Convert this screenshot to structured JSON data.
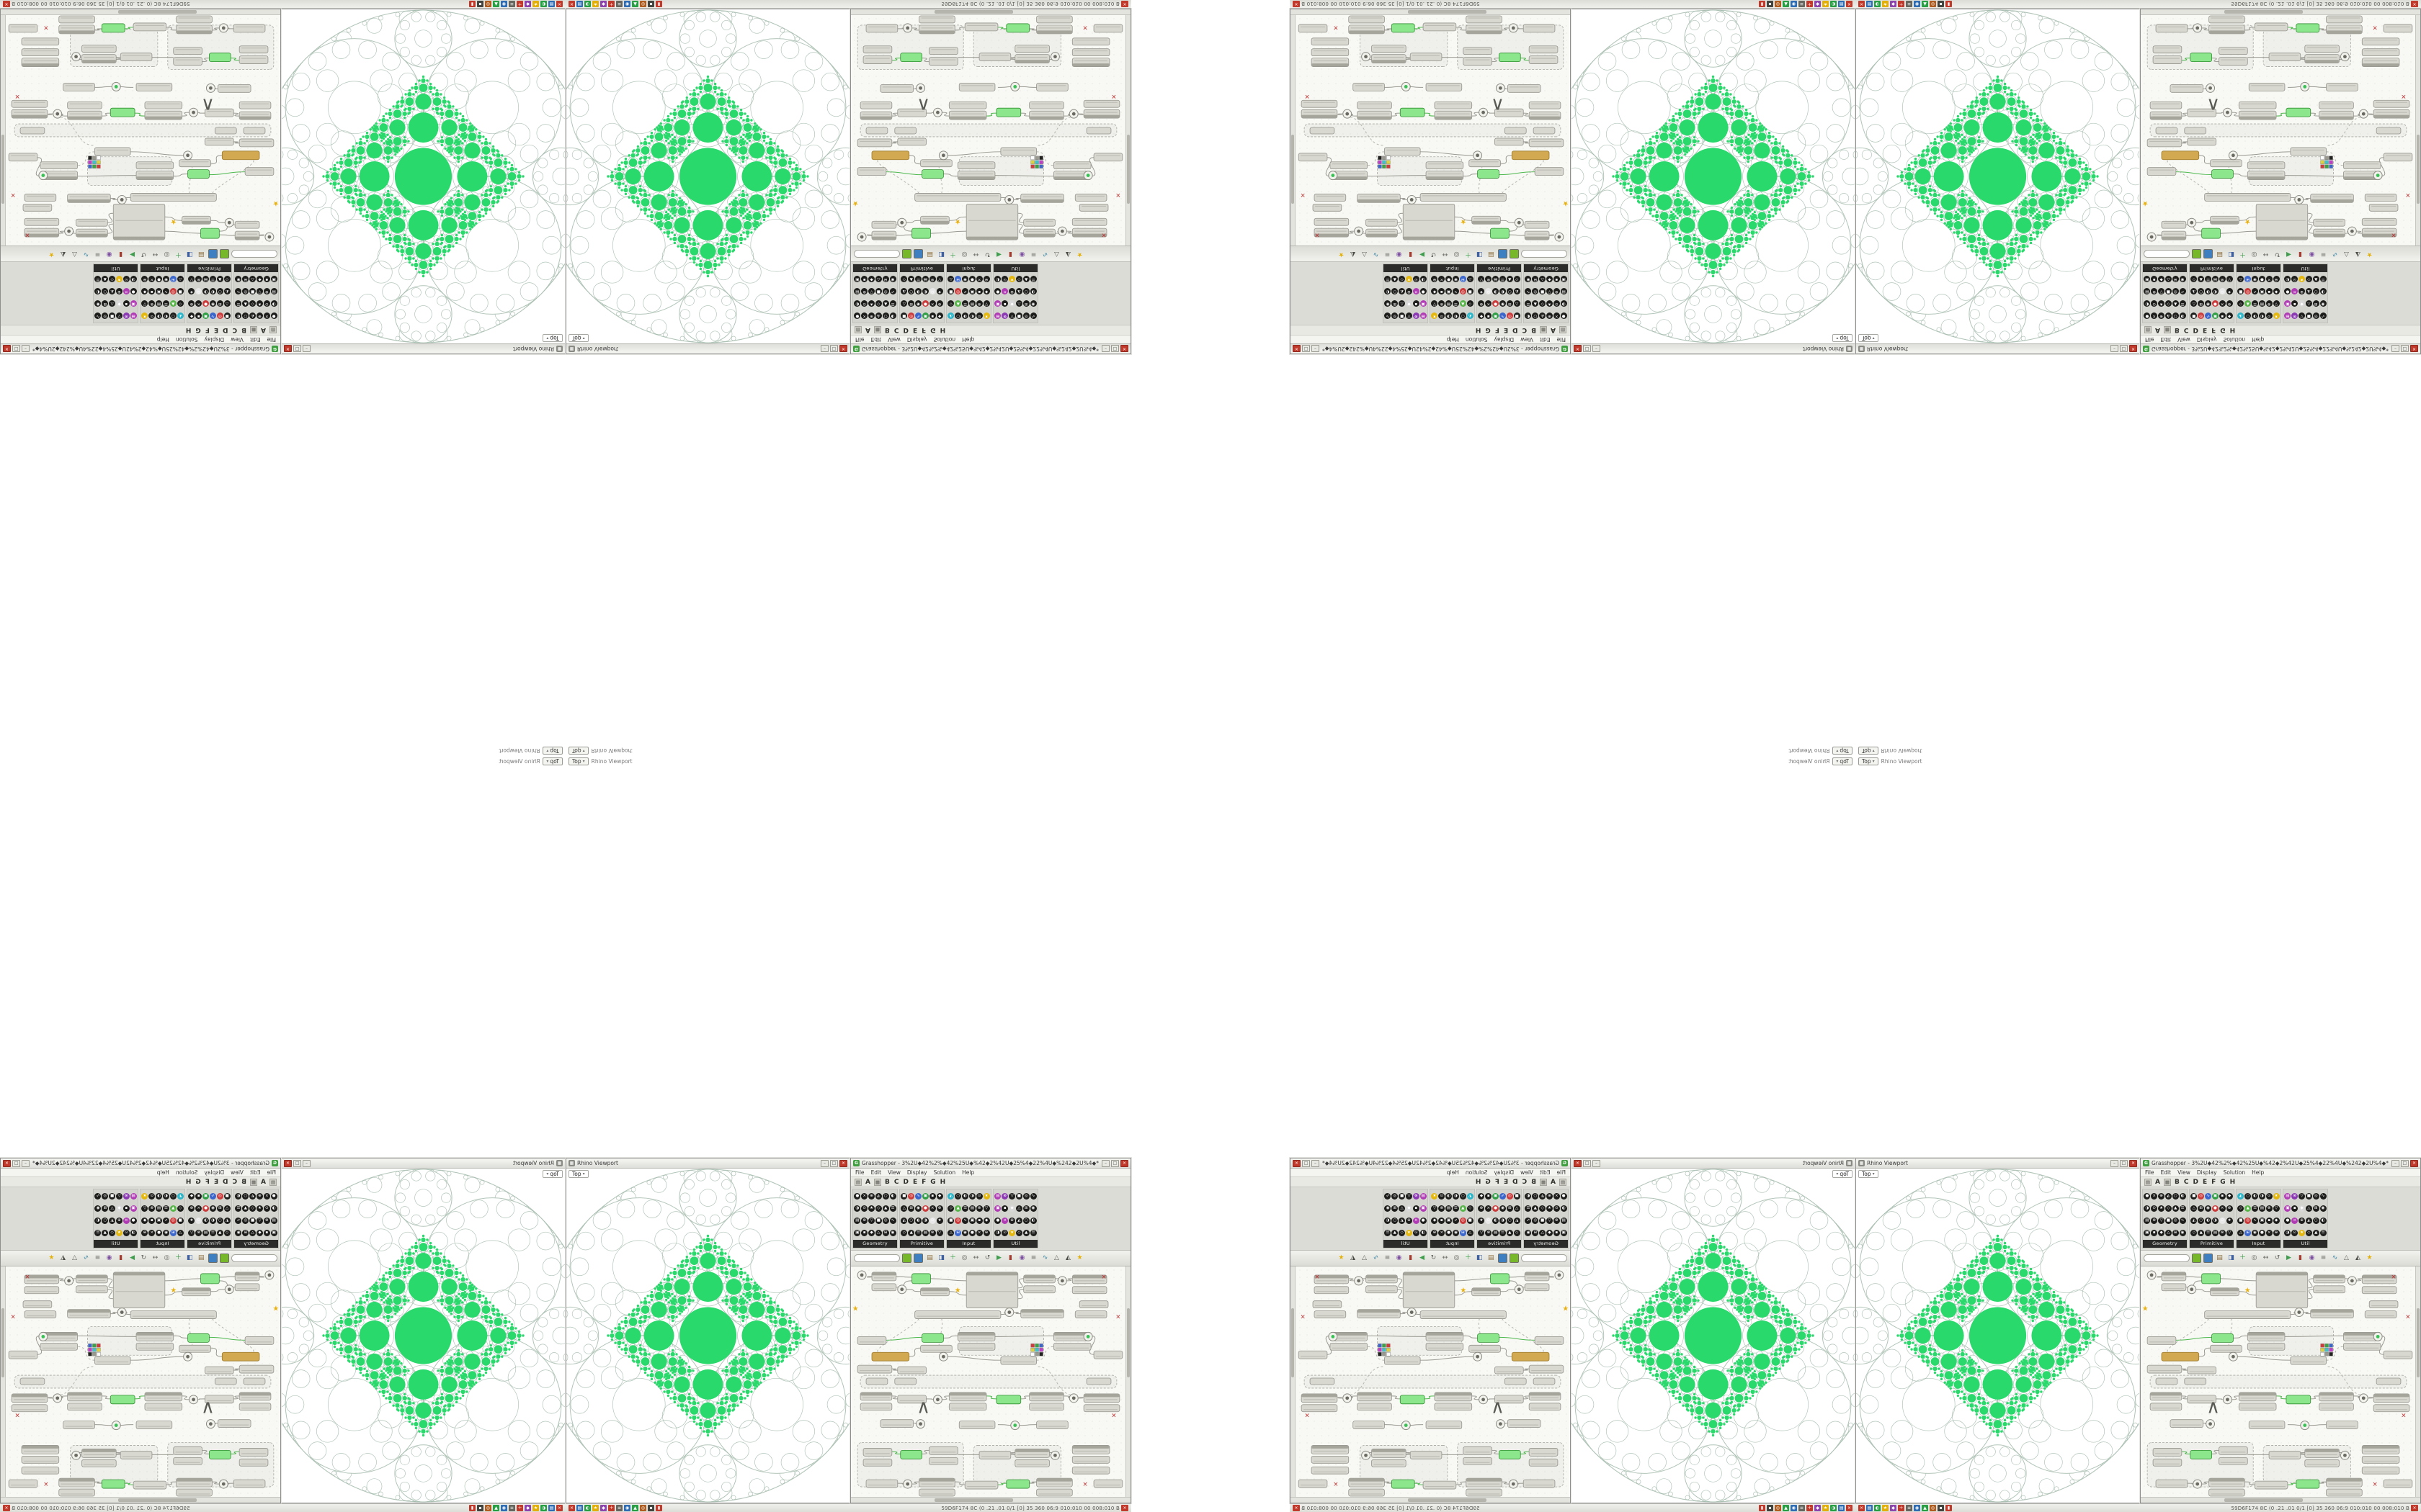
{
  "colors": {
    "fractal_green": "#2ad96c",
    "fractal_line": "#9fb6a8",
    "gh_selected_green": "#8ce68c",
    "gh_selected_stroke": "#2f8f2f",
    "node_tan": "#d2a951",
    "node_tan_stroke": "#9a7a2e",
    "wire": "#9a9a92",
    "wire_selected": "#4db84d"
  },
  "ui": {
    "chevron": "▾",
    "win_buttons": [
      "–",
      "□",
      "×"
    ]
  },
  "viewport_window": {
    "icon_glyph": "▦",
    "title": "Rhino Viewport",
    "view_tab": "Top"
  },
  "viewport_tab_strip": {
    "view_pill": "Top",
    "label": "Rhino Viewport"
  },
  "gh_window": {
    "icon_glyph": "G",
    "title": "Grasshopper - 3%2U◆42%2%◆42%25U◆%42◆2%42U◆25%4◆22%4U◆%242◆2U%4◆*",
    "menu": [
      "File",
      "Edit",
      "View",
      "Display",
      "Solution",
      "Help"
    ],
    "tabs": [
      {
        "k": "icon",
        "g": "▤"
      },
      {
        "k": "tab",
        "g": "A"
      },
      {
        "k": "icon",
        "g": "▦"
      },
      {
        "k": "tab",
        "g": "B"
      },
      {
        "k": "tab",
        "g": "C"
      },
      {
        "k": "tab",
        "g": "D"
      },
      {
        "k": "tab",
        "g": "E"
      },
      {
        "k": "tab",
        "g": "F"
      },
      {
        "k": "tab",
        "g": "G"
      },
      {
        "k": "tab",
        "g": "H"
      }
    ],
    "palette": {
      "glyphs": "●◐▲■◆×◑☰◎△⊕⊙▤∿⊞◭★⊗▣◉○◇▽▪",
      "icons_per_group": 24,
      "groups": [
        {
          "name": "Geometry",
          "accents": []
        },
        {
          "name": "Primitive",
          "accents": [
            [
              1,
              "#cc3b3b"
            ],
            [
              2,
              "#3b66cc"
            ],
            [
              3,
              "#2f9e44"
            ],
            [
              9,
              "#cc3b3b"
            ],
            [
              16,
              "#e8e8e8"
            ]
          ]
        },
        {
          "name": "Input",
          "accents": [
            [
              0,
              "#2bb5c9"
            ],
            [
              5,
              "#e4b80e"
            ],
            [
              7,
              "#58b54a"
            ],
            [
              13,
              "#cc3b3b"
            ],
            [
              19,
              "#3b66cc"
            ]
          ]
        },
        {
          "name": "Util",
          "accents": [
            [
              0,
              "#b13bb5"
            ],
            [
              1,
              "#8d3bb5"
            ],
            [
              6,
              "#b13bb5"
            ],
            [
              8,
              "#d8d8d8"
            ],
            [
              13,
              "#b13bb5"
            ],
            [
              20,
              "#e4b80e"
            ]
          ]
        }
      ]
    },
    "toolbar": {
      "search_placeholder": "",
      "buttons": [
        {
          "n": "preview-button",
          "c": "#76b82a"
        },
        {
          "n": "bake-button",
          "c": "#3e7fc1"
        }
      ],
      "icons": [
        {
          "n": "open-file-icon",
          "g": "▤",
          "c": "#8a6d3b"
        },
        {
          "n": "save-file-icon",
          "g": "◨",
          "c": "#3e5fa0"
        },
        {
          "n": "add-component-icon",
          "g": "＋",
          "c": "#3f9e4d"
        },
        {
          "n": "zoom-icon",
          "g": "◎",
          "c": "#666660"
        },
        {
          "n": "pan-icon",
          "g": "↔",
          "c": "#666660"
        },
        {
          "n": "undo-icon",
          "g": "↺",
          "c": "#666660"
        },
        {
          "n": "play-solver-icon",
          "g": "▶",
          "c": "#3f9e4d"
        },
        {
          "n": "pause-solver-icon",
          "g": "▮",
          "c": "#a33c30"
        },
        {
          "n": "camera-icon",
          "g": "◉",
          "c": "#7b4ea0"
        },
        {
          "n": "list-view-icon",
          "g": "≡",
          "c": "#666660"
        },
        {
          "n": "graph-icon",
          "g": "∿",
          "c": "#2f7fa0"
        },
        {
          "n": "wireframe-icon",
          "g": "△",
          "c": "#666660"
        },
        {
          "n": "shaded-preview-icon",
          "g": "◭",
          "c": "#4a4a44"
        },
        {
          "n": "favorites-icon",
          "g": "★",
          "c": "#e2b007"
        }
      ]
    }
  },
  "rhino_bar": {
    "status_text": "59D6F174 8C (0 .21 .01 0/1 [0] 35 360 06:9 010:010 00 008:010 B",
    "badge_glyph": "×",
    "icons": [
      {
        "n": "close-app-icon",
        "g": "×",
        "c": "#c0392b"
      },
      {
        "n": "layers-icon",
        "g": "▤",
        "c": "#2e6db4"
      },
      {
        "n": "display-mode-icon",
        "g": "◐",
        "c": "#27a044"
      },
      {
        "n": "favorites-icon",
        "g": "★",
        "c": "#e2b007"
      },
      {
        "n": "gem-icon",
        "g": "◆",
        "c": "#8e44ad"
      },
      {
        "n": "add-icon",
        "g": "＋",
        "c": "#c0392b"
      },
      {
        "n": "list-icon",
        "g": "≡",
        "c": "#66665f"
      },
      {
        "n": "record-icon",
        "g": "◉",
        "c": "#2e6db4"
      },
      {
        "n": "snap-icon",
        "g": "▲",
        "c": "#27a044"
      },
      {
        "n": "target-icon",
        "g": "◎",
        "c": "#b05c1e"
      },
      {
        "n": "block-icon",
        "g": "▪",
        "c": "#44443f"
      },
      {
        "n": "panel-icon",
        "g": "▮",
        "c": "#c0392b"
      }
    ]
  },
  "graph": {
    "swatch_colors": [
      "#d33b3b",
      "#3aa344",
      "#3b66cc",
      "#ddd23b",
      "#3bc4cc",
      "#c43bcc",
      "#ffffff",
      "#99998f",
      "#222220"
    ],
    "groups": [
      [
        150,
        84,
        118,
        40
      ],
      [
        12,
        152,
        358,
        18
      ],
      [
        8,
        246,
        148,
        62
      ],
      [
        170,
        250,
        122,
        52
      ]
    ],
    "nodes": [
      [
        14,
        12,
        7,
        0,
        "k"
      ],
      [
        28,
        8,
        34,
        12,
        "h"
      ],
      [
        28,
        24,
        34,
        10,
        "p"
      ],
      [
        84,
        10,
        26,
        14,
        "g"
      ],
      [
        70,
        32,
        6,
        0,
        "k"
      ],
      [
        96,
        30,
        40,
        11,
        "h"
      ],
      [
        148,
        32,
        0,
        0,
        "r"
      ],
      [
        160,
        8,
        72,
        50,
        "h"
      ],
      [
        240,
        12,
        44,
        11,
        "h"
      ],
      [
        240,
        27,
        44,
        10,
        "p"
      ],
      [
        294,
        20,
        6,
        0,
        "k"
      ],
      [
        308,
        12,
        48,
        12,
        "h"
      ],
      [
        308,
        28,
        48,
        10,
        "p"
      ],
      [
        352,
        14,
        0,
        0,
        "x"
      ],
      [
        318,
        48,
        40,
        10,
        "p"
      ],
      [
        88,
        62,
        120,
        11,
        "p"
      ],
      [
        220,
        64,
        6,
        0,
        "k"
      ],
      [
        236,
        60,
        60,
        12,
        "h"
      ],
      [
        312,
        62,
        44,
        10,
        "p"
      ],
      [
        8,
        98,
        40,
        11,
        "p"
      ],
      [
        98,
        94,
        30,
        12,
        "g"
      ],
      [
        96,
        110,
        44,
        10,
        "p"
      ],
      [
        148,
        92,
        52,
        12,
        "h"
      ],
      [
        148,
        107,
        52,
        10,
        "p"
      ],
      [
        250,
        108,
        0,
        0,
        "s"
      ],
      [
        208,
        126,
        50,
        11,
        "p"
      ],
      [
        128,
        126,
        6,
        0,
        "k"
      ],
      [
        282,
        92,
        52,
        12,
        "h"
      ],
      [
        282,
        107,
        52,
        10,
        "p"
      ],
      [
        338,
        118,
        40,
        11,
        "p"
      ],
      [
        330,
        98,
        6,
        0,
        "K"
      ],
      [
        28,
        120,
        52,
        12,
        "t"
      ],
      [
        8,
        138,
        48,
        11,
        "p"
      ],
      [
        64,
        140,
        40,
        10,
        "p"
      ],
      [
        20,
        156,
        30,
        9,
        "p"
      ],
      [
        60,
        156,
        30,
        9,
        "p"
      ],
      [
        328,
        156,
        34,
        9,
        "p"
      ],
      [
        12,
        176,
        44,
        11,
        "h"
      ],
      [
        12,
        191,
        44,
        10,
        "p"
      ],
      [
        64,
        180,
        40,
        11,
        "p"
      ],
      [
        100,
        196,
        0,
        0,
        "c"
      ],
      [
        120,
        186,
        6,
        0,
        "k"
      ],
      [
        136,
        176,
        52,
        12,
        "h"
      ],
      [
        136,
        191,
        52,
        10,
        "p"
      ],
      [
        202,
        180,
        34,
        12,
        "g"
      ],
      [
        248,
        176,
        48,
        12,
        "h"
      ],
      [
        248,
        191,
        48,
        10,
        "p"
      ],
      [
        310,
        184,
        6,
        0,
        "k"
      ],
      [
        324,
        178,
        50,
        12,
        "h"
      ],
      [
        324,
        193,
        50,
        10,
        "p"
      ],
      [
        366,
        208,
        0,
        0,
        "x"
      ],
      [
        40,
        214,
        46,
        11,
        "p"
      ],
      [
        150,
        216,
        50,
        11,
        "p"
      ],
      [
        258,
        216,
        44,
        11,
        "p"
      ],
      [
        96,
        220,
        6,
        0,
        "k"
      ],
      [
        228,
        222,
        6,
        0,
        "K"
      ],
      [
        16,
        254,
        40,
        11,
        "p"
      ],
      [
        16,
        269,
        40,
        10,
        "p"
      ],
      [
        68,
        257,
        30,
        12,
        "g"
      ],
      [
        108,
        252,
        40,
        11,
        "p"
      ],
      [
        108,
        267,
        40,
        10,
        "p"
      ],
      [
        178,
        258,
        44,
        11,
        "p"
      ],
      [
        228,
        255,
        48,
        12,
        "h"
      ],
      [
        228,
        270,
        48,
        10,
        "p"
      ],
      [
        284,
        264,
        6,
        0,
        "k"
      ],
      [
        308,
        250,
        52,
        12,
        "h"
      ],
      [
        308,
        265,
        52,
        10,
        "p"
      ],
      [
        308,
        280,
        52,
        10,
        "p"
      ],
      [
        20,
        298,
        44,
        11,
        "p"
      ],
      [
        78,
        304,
        6,
        0,
        "k"
      ],
      [
        94,
        296,
        50,
        12,
        "h"
      ],
      [
        94,
        311,
        50,
        10,
        "p"
      ],
      [
        158,
        300,
        46,
        11,
        "p"
      ],
      [
        216,
        298,
        32,
        12,
        "g"
      ],
      [
        258,
        296,
        50,
        12,
        "h"
      ],
      [
        258,
        311,
        50,
        10,
        "p"
      ],
      [
        326,
        304,
        0,
        0,
        "x"
      ],
      [
        338,
        298,
        40,
        11,
        "p"
      ],
      [
        5,
        58,
        0,
        0,
        "r"
      ],
      [
        372,
        70,
        0,
        0,
        "x"
      ]
    ],
    "wires": [
      [
        21,
        15,
        28,
        14,
        0
      ],
      [
        62,
        14,
        84,
        15,
        0
      ],
      [
        62,
        29,
        84,
        20,
        0
      ],
      [
        76,
        32,
        96,
        35,
        0
      ],
      [
        110,
        17,
        160,
        20,
        0
      ],
      [
        136,
        35,
        160,
        40,
        0
      ],
      [
        232,
        30,
        240,
        17,
        0
      ],
      [
        284,
        17,
        294,
        20,
        0
      ],
      [
        300,
        20,
        308,
        17,
        0
      ],
      [
        208,
        67,
        220,
        64,
        0
      ],
      [
        226,
        64,
        236,
        66,
        0
      ],
      [
        232,
        45,
        240,
        32,
        0
      ],
      [
        48,
        103,
        98,
        99,
        1
      ],
      [
        128,
        100,
        148,
        97,
        0
      ],
      [
        200,
        98,
        282,
        97,
        0
      ],
      [
        334,
        97,
        338,
        123,
        0
      ],
      [
        134,
        126,
        208,
        131,
        0
      ],
      [
        258,
        131,
        282,
        112,
        2
      ],
      [
        80,
        126,
        96,
        114,
        0
      ],
      [
        56,
        143,
        64,
        145,
        0
      ],
      [
        56,
        181,
        64,
        185,
        0
      ],
      [
        104,
        185,
        120,
        186,
        0
      ],
      [
        126,
        186,
        136,
        181,
        0
      ],
      [
        188,
        181,
        202,
        185,
        1
      ],
      [
        236,
        185,
        248,
        181,
        0
      ],
      [
        296,
        181,
        310,
        184,
        0
      ],
      [
        316,
        184,
        324,
        183,
        0
      ],
      [
        86,
        219,
        96,
        220,
        0
      ],
      [
        204,
        221,
        228,
        222,
        0
      ],
      [
        234,
        222,
        258,
        221,
        0
      ],
      [
        56,
        259,
        68,
        262,
        1
      ],
      [
        98,
        262,
        108,
        257,
        0
      ],
      [
        148,
        263,
        178,
        263,
        0
      ],
      [
        222,
        263,
        228,
        260,
        0
      ],
      [
        276,
        260,
        284,
        264,
        0
      ],
      [
        64,
        303,
        78,
        304,
        0
      ],
      [
        84,
        304,
        94,
        301,
        0
      ],
      [
        144,
        301,
        158,
        305,
        0
      ],
      [
        204,
        305,
        216,
        303,
        1
      ],
      [
        248,
        303,
        258,
        301,
        0
      ],
      [
        90,
        70,
        40,
        120,
        2
      ],
      [
        260,
        140,
        310,
        180,
        2
      ],
      [
        120,
        70,
        128,
        122,
        2
      ]
    ]
  }
}
